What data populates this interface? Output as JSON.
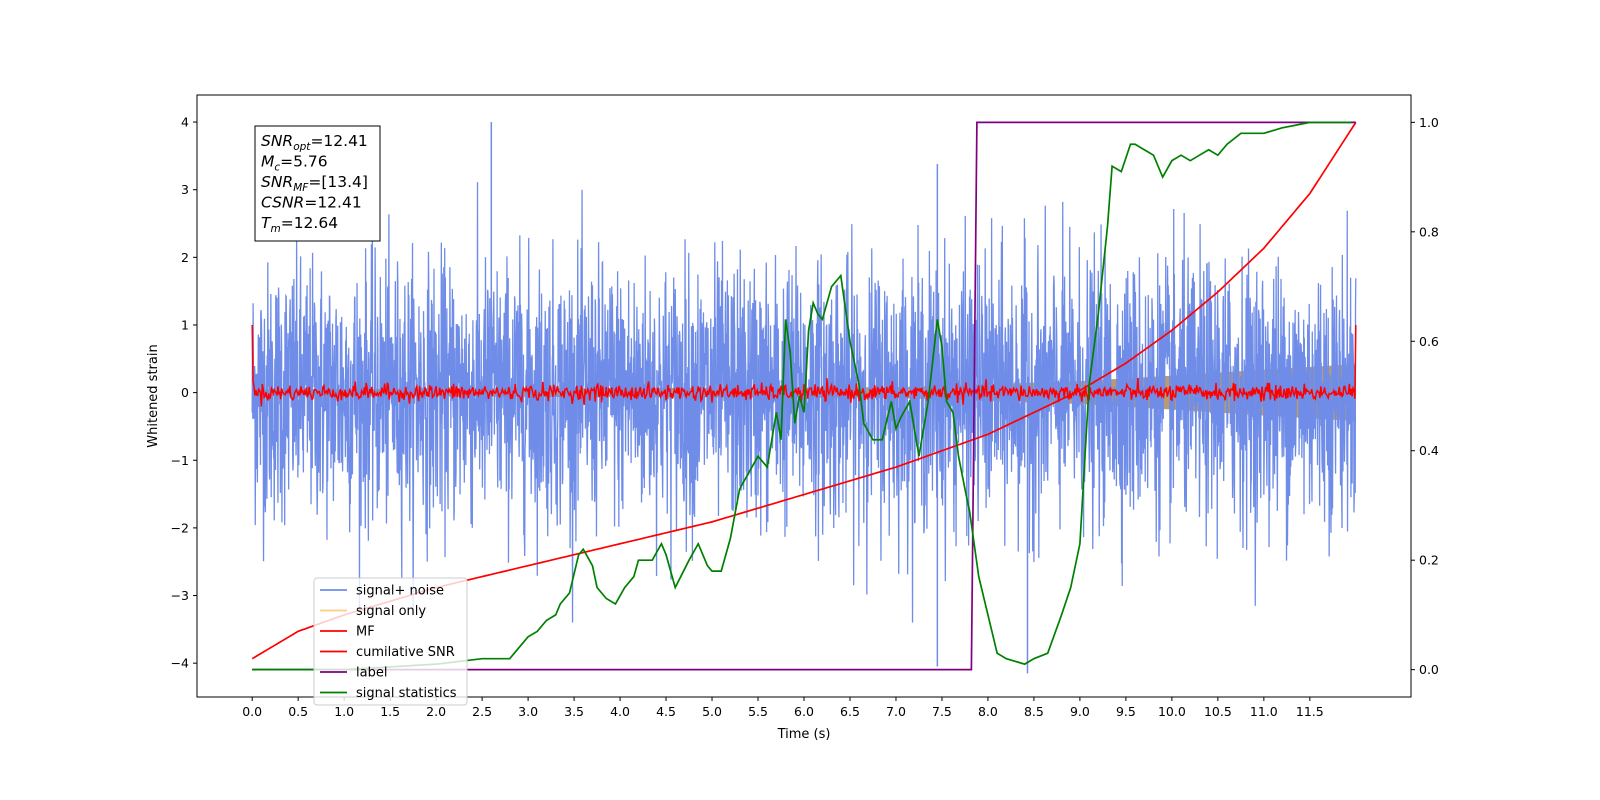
{
  "chart_data": {
    "type": "line",
    "xlabel": "Time (s)",
    "ylabel": "Whitened strain",
    "xlim": [
      -0.6,
      12.6
    ],
    "ylim": [
      -4.5,
      4.4
    ],
    "y2lim": [
      -0.05,
      1.05
    ],
    "x_ticks": [
      "0.0",
      "0.5",
      "1.0",
      "1.5",
      "2.0",
      "2.5",
      "3.0",
      "3.5",
      "4.0",
      "4.5",
      "5.0",
      "5.5",
      "6.0",
      "6.5",
      "7.0",
      "7.5",
      "8.0",
      "8.5",
      "9.0",
      "9.5",
      "10.0",
      "10.5",
      "11.0",
      "11.5"
    ],
    "y_ticks": [
      "4",
      "3",
      "2",
      "1",
      "0",
      "−1",
      "−2",
      "−3",
      "−4"
    ],
    "y2_ticks": [
      "1.0",
      "0.8",
      "0.6",
      "0.4",
      "0.2",
      "0.0"
    ],
    "grid": false,
    "legend_position": "lower-left",
    "colors": {
      "signal_noise": "#6f8de8",
      "signal_only": "#ffcc80",
      "signal_fill": "#b89a73",
      "MF": "#ff0000",
      "cumulative_snr": "#ff0000",
      "label": "#800080",
      "signal_statistics": "#008000"
    },
    "series": [
      {
        "name": "signal+ noise",
        "axis": "left",
        "description_values": "white noise with std ~0.95 and spikes up to about ±4",
        "x_range": [
          0.0,
          12.0
        ],
        "notable_spikes": [
          [
            2.6,
            4.0
          ],
          [
            7.45,
            -4.05
          ],
          [
            8.43,
            -4.15
          ],
          [
            7.45,
            3.38
          ]
        ]
      },
      {
        "name": "signal only",
        "axis": "left",
        "envelope": {
          "x": [
            0.0,
            7.0,
            9.0,
            10.0,
            11.0,
            12.0
          ],
          "amp": [
            0.05,
            0.08,
            0.17,
            0.25,
            0.34,
            0.42
          ]
        }
      },
      {
        "name": "MF",
        "axis": "left",
        "x_range": [
          0.0,
          12.0
        ],
        "endpoints": {
          "start": 1.0,
          "end": 1.0
        },
        "noise_level": 0.06
      },
      {
        "name": "cumilative SNR",
        "axis": "right",
        "x": [
          0.0,
          0.5,
          1.0,
          2.0,
          3.0,
          4.0,
          5.0,
          6.0,
          7.0,
          8.0,
          9.0,
          9.5,
          10.0,
          10.5,
          11.0,
          11.5,
          12.0
        ],
        "y": [
          0.02,
          0.07,
          0.1,
          0.15,
          0.19,
          0.23,
          0.27,
          0.32,
          0.37,
          0.43,
          0.51,
          0.56,
          0.62,
          0.69,
          0.77,
          0.87,
          1.0
        ]
      },
      {
        "name": "label",
        "axis": "right",
        "x": [
          0.0,
          7.82,
          7.88,
          12.0
        ],
        "y": [
          0.0,
          0.0,
          1.0,
          1.0
        ]
      },
      {
        "name": "signal statistics",
        "axis": "right",
        "x": [
          0.0,
          1.0,
          2.0,
          2.5,
          2.8,
          2.85,
          3.0,
          3.1,
          3.2,
          3.3,
          3.35,
          3.45,
          3.55,
          3.6,
          3.7,
          3.75,
          3.85,
          3.95,
          4.05,
          4.15,
          4.2,
          4.35,
          4.45,
          4.5,
          4.6,
          4.75,
          4.85,
          4.95,
          5.0,
          5.1,
          5.2,
          5.3,
          5.4,
          5.5,
          5.6,
          5.7,
          5.75,
          5.8,
          5.85,
          5.9,
          5.95,
          6.0,
          6.05,
          6.1,
          6.15,
          6.2,
          6.3,
          6.4,
          6.5,
          6.6,
          6.65,
          6.75,
          6.85,
          6.95,
          7.0,
          7.05,
          7.15,
          7.25,
          7.35,
          7.45,
          7.5,
          7.55,
          7.62,
          7.68,
          7.75,
          7.8,
          7.9,
          8.0,
          8.1,
          8.2,
          8.3,
          8.4,
          8.5,
          8.65,
          8.8,
          8.9,
          9.0,
          9.1,
          9.2,
          9.3,
          9.35,
          9.45,
          9.55,
          9.6,
          9.7,
          9.8,
          9.9,
          10.0,
          10.1,
          10.2,
          10.3,
          10.4,
          10.5,
          10.6,
          10.75,
          11.0,
          11.2,
          11.5,
          11.95
        ],
        "y": [
          0.0,
          0.0,
          0.01,
          0.02,
          0.02,
          0.03,
          0.06,
          0.07,
          0.09,
          0.1,
          0.12,
          0.14,
          0.21,
          0.22,
          0.19,
          0.15,
          0.13,
          0.12,
          0.15,
          0.17,
          0.2,
          0.2,
          0.23,
          0.21,
          0.15,
          0.2,
          0.23,
          0.19,
          0.18,
          0.18,
          0.24,
          0.33,
          0.36,
          0.39,
          0.37,
          0.47,
          0.42,
          0.64,
          0.58,
          0.45,
          0.5,
          0.47,
          0.62,
          0.67,
          0.65,
          0.64,
          0.7,
          0.72,
          0.6,
          0.52,
          0.45,
          0.42,
          0.42,
          0.49,
          0.44,
          0.46,
          0.49,
          0.39,
          0.49,
          0.64,
          0.59,
          0.49,
          0.47,
          0.39,
          0.33,
          0.29,
          0.17,
          0.1,
          0.03,
          0.02,
          0.015,
          0.01,
          0.02,
          0.03,
          0.1,
          0.15,
          0.23,
          0.52,
          0.65,
          0.81,
          0.92,
          0.91,
          0.96,
          0.96,
          0.95,
          0.94,
          0.9,
          0.93,
          0.94,
          0.93,
          0.94,
          0.95,
          0.94,
          0.96,
          0.98,
          0.98,
          0.99,
          1.0,
          1.0
        ]
      }
    ]
  },
  "info_box": {
    "lines": [
      {
        "main": "SNR",
        "sub": "opt",
        "value": "=12.41"
      },
      {
        "main": "M",
        "sub": "c",
        "value": "=5.76"
      },
      {
        "main": "SNR",
        "sub": "MF",
        "value": "=[13.4]"
      },
      {
        "main": "CSNR",
        "sub": "",
        "value": "=12.41"
      },
      {
        "main": "T",
        "sub": "m",
        "value": "=12.64"
      }
    ]
  },
  "legend": {
    "items": [
      {
        "label": "signal+ noise",
        "color": "#6f8de8"
      },
      {
        "label": "signal only",
        "color": "#ffcc80"
      },
      {
        "label": "MF",
        "color": "#ff0000"
      },
      {
        "label": "cumilative SNR",
        "color": "#ff0000"
      },
      {
        "label": "label",
        "color": "#800080"
      },
      {
        "label": "signal statistics",
        "color": "#008000"
      }
    ]
  }
}
